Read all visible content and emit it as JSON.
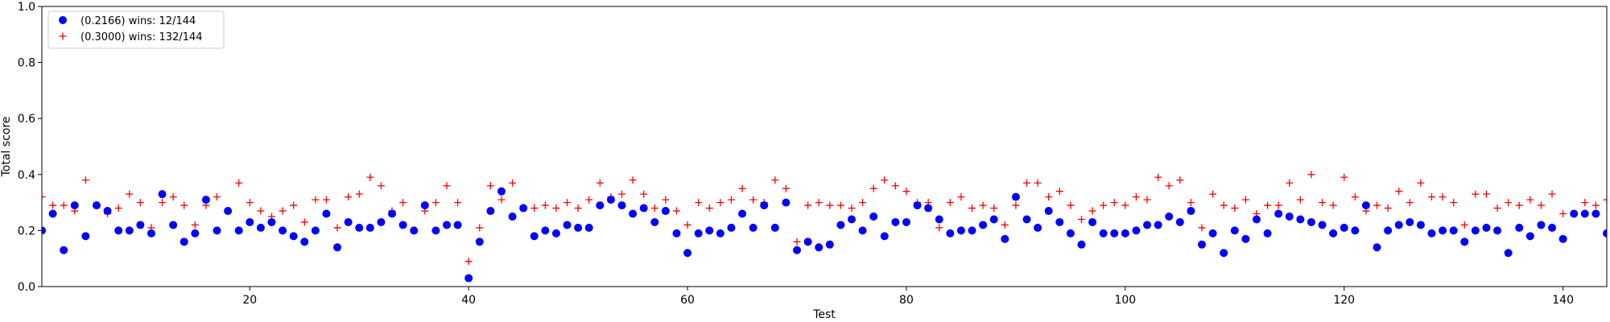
{
  "chart_data": {
    "type": "scatter",
    "title": "",
    "xlabel": "Test",
    "ylabel": "Total score",
    "xlim": [
      1,
      144
    ],
    "ylim": [
      0.0,
      1.0
    ],
    "xticks": [
      20,
      40,
      60,
      80,
      100,
      120,
      140
    ],
    "xtick_labels": [
      "20",
      "40",
      "60",
      "80",
      "100",
      "120",
      "140"
    ],
    "yticks": [
      0.0,
      0.2,
      0.4,
      0.6,
      0.8,
      1.0
    ],
    "ytick_labels": [
      "0.0",
      "0.2",
      "0.4",
      "0.6",
      "0.8",
      "1.0"
    ],
    "grid": false,
    "legend_position": "top-left",
    "x": [
      1,
      2,
      3,
      4,
      5,
      6,
      7,
      8,
      9,
      10,
      11,
      12,
      13,
      14,
      15,
      16,
      17,
      18,
      19,
      20,
      21,
      22,
      23,
      24,
      25,
      26,
      27,
      28,
      29,
      30,
      31,
      32,
      33,
      34,
      35,
      36,
      37,
      38,
      39,
      40,
      41,
      42,
      43,
      44,
      45,
      46,
      47,
      48,
      49,
      50,
      51,
      52,
      53,
      54,
      55,
      56,
      57,
      58,
      59,
      60,
      61,
      62,
      63,
      64,
      65,
      66,
      67,
      68,
      69,
      70,
      71,
      72,
      73,
      74,
      75,
      76,
      77,
      78,
      79,
      80,
      81,
      82,
      83,
      84,
      85,
      86,
      87,
      88,
      89,
      90,
      91,
      92,
      93,
      94,
      95,
      96,
      97,
      98,
      99,
      100,
      101,
      102,
      103,
      104,
      105,
      106,
      107,
      108,
      109,
      110,
      111,
      112,
      113,
      114,
      115,
      116,
      117,
      118,
      119,
      120,
      121,
      122,
      123,
      124,
      125,
      126,
      127,
      128,
      129,
      130,
      131,
      132,
      133,
      134,
      135,
      136,
      137,
      138,
      139,
      140,
      141,
      142,
      143,
      144
    ],
    "series": [
      {
        "name": "(0.2166) wins: 12/144",
        "marker": "circle",
        "color": "#0000ff",
        "values": [
          0.2,
          0.26,
          0.13,
          0.29,
          0.18,
          0.29,
          0.27,
          0.2,
          0.2,
          0.22,
          0.19,
          0.33,
          0.22,
          0.16,
          0.19,
          0.31,
          0.2,
          0.27,
          0.2,
          0.23,
          0.21,
          0.23,
          0.2,
          0.18,
          0.16,
          0.2,
          0.26,
          0.14,
          0.23,
          0.21,
          0.21,
          0.23,
          0.26,
          0.22,
          0.2,
          0.29,
          0.2,
          0.22,
          0.22,
          0.03,
          0.16,
          0.27,
          0.34,
          0.25,
          0.28,
          0.18,
          0.2,
          0.19,
          0.22,
          0.21,
          0.21,
          0.29,
          0.31,
          0.29,
          0.26,
          0.28,
          0.23,
          0.27,
          0.19,
          0.12,
          0.19,
          0.2,
          0.19,
          0.21,
          0.26,
          0.21,
          0.29,
          0.21,
          0.3,
          0.13,
          0.16,
          0.14,
          0.15,
          0.22,
          0.24,
          0.2,
          0.25,
          0.18,
          0.23,
          0.23,
          0.29,
          0.28,
          0.24,
          0.19,
          0.2,
          0.2,
          0.22,
          0.24,
          0.17,
          0.32,
          0.24,
          0.21,
          0.27,
          0.23,
          0.19,
          0.15,
          0.23,
          0.19,
          0.19,
          0.19,
          0.2,
          0.22,
          0.22,
          0.25,
          0.23,
          0.27,
          0.15,
          0.19,
          0.12,
          0.2,
          0.17,
          0.24,
          0.19,
          0.26,
          0.25,
          0.24,
          0.23,
          0.22,
          0.19,
          0.21,
          0.2,
          0.29,
          0.14,
          0.2,
          0.22,
          0.23,
          0.22,
          0.19,
          0.2,
          0.2,
          0.16,
          0.2,
          0.21,
          0.2,
          0.12,
          0.21,
          0.18,
          0.22,
          0.21,
          0.17,
          0.26,
          0.26,
          0.26,
          0.19
        ]
      },
      {
        "name": "(0.3000) wins: 132/144",
        "marker": "plus",
        "color": "#ff0000",
        "values": [
          0.32,
          0.29,
          0.29,
          0.27,
          0.38,
          0.29,
          0.26,
          0.28,
          0.33,
          0.3,
          0.21,
          0.3,
          0.32,
          0.29,
          0.22,
          0.29,
          0.32,
          0.27,
          0.37,
          0.3,
          0.27,
          0.25,
          0.27,
          0.29,
          0.23,
          0.31,
          0.31,
          0.21,
          0.32,
          0.33,
          0.39,
          0.36,
          0.27,
          0.3,
          0.2,
          0.27,
          0.3,
          0.36,
          0.3,
          0.09,
          0.21,
          0.36,
          0.31,
          0.37,
          0.28,
          0.28,
          0.29,
          0.28,
          0.3,
          0.28,
          0.31,
          0.37,
          0.32,
          0.33,
          0.38,
          0.33,
          0.28,
          0.31,
          0.27,
          0.22,
          0.3,
          0.28,
          0.3,
          0.31,
          0.35,
          0.31,
          0.3,
          0.38,
          0.35,
          0.16,
          0.29,
          0.3,
          0.29,
          0.29,
          0.28,
          0.3,
          0.35,
          0.38,
          0.36,
          0.34,
          0.3,
          0.3,
          0.21,
          0.3,
          0.32,
          0.28,
          0.29,
          0.28,
          0.22,
          0.29,
          0.37,
          0.37,
          0.32,
          0.34,
          0.29,
          0.24,
          0.27,
          0.29,
          0.3,
          0.29,
          0.32,
          0.31,
          0.39,
          0.36,
          0.38,
          0.3,
          0.21,
          0.33,
          0.29,
          0.28,
          0.31,
          0.26,
          0.29,
          0.29,
          0.37,
          0.31,
          0.4,
          0.3,
          0.29,
          0.39,
          0.32,
          0.27,
          0.29,
          0.28,
          0.34,
          0.3,
          0.37,
          0.32,
          0.32,
          0.3,
          0.22,
          0.33,
          0.33,
          0.28,
          0.3,
          0.29,
          0.31,
          0.29,
          0.33,
          0.26,
          0.26,
          0.3,
          0.29,
          0.31
        ]
      }
    ]
  }
}
